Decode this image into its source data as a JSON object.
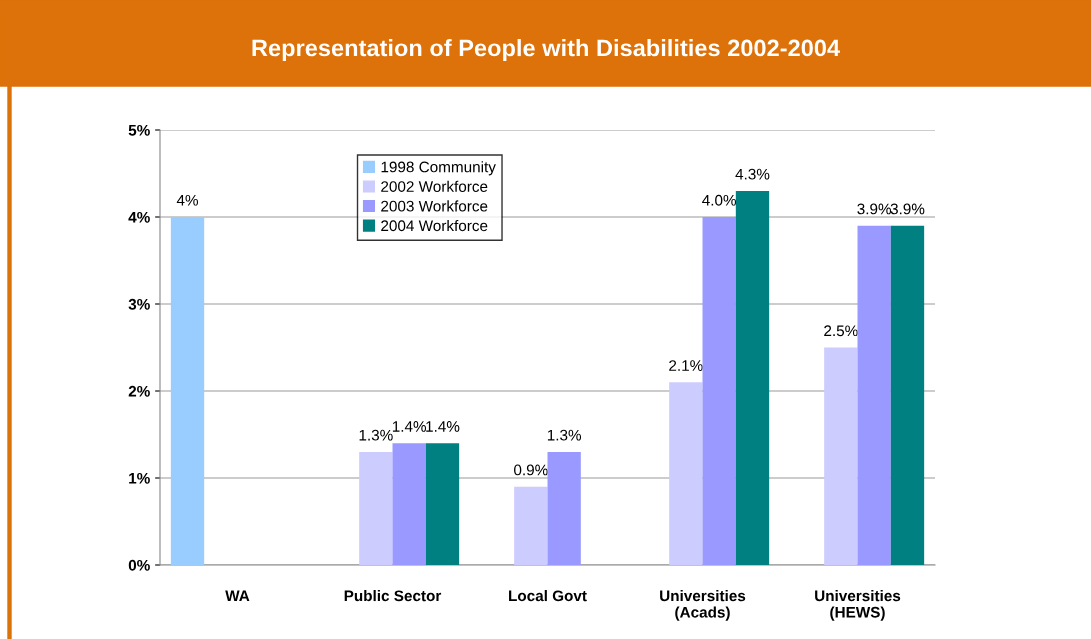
{
  "chart_data": {
    "type": "bar",
    "title": "Representation of People with Disabilities 2002-2004",
    "categories": [
      "WA",
      "Public Sector",
      "Local Govt",
      "Universities\n(Acads)",
      "Universities\n(HEWS)"
    ],
    "series": [
      {
        "name": "1998 Community",
        "color": "#99ccff",
        "values": [
          4,
          null,
          null,
          null,
          null
        ],
        "value_labels": [
          "4%",
          null,
          null,
          null,
          null
        ]
      },
      {
        "name": "2002 Workforce",
        "color": "#ccccff",
        "values": [
          null,
          1.3,
          0.9,
          2.1,
          2.5
        ],
        "value_labels": [
          null,
          "1.3%",
          "0.9%",
          "2.1%",
          "2.5%"
        ]
      },
      {
        "name": "2003 Workforce",
        "color": "#9999ff",
        "values": [
          null,
          1.4,
          1.3,
          4.0,
          3.9
        ],
        "value_labels": [
          null,
          "1.4%",
          "1.3%",
          "4.0%",
          "3.9%"
        ]
      },
      {
        "name": "2004 Workforce",
        "color": "#008080",
        "values": [
          null,
          1.4,
          null,
          4.3,
          3.9
        ],
        "value_labels": [
          null,
          "1.4%",
          null,
          "4.3%",
          "3.9%"
        ]
      }
    ],
    "ylim": [
      0,
      5
    ],
    "yticks": [
      {
        "value": 0,
        "label": "0%"
      },
      {
        "value": 1,
        "label": "1%"
      },
      {
        "value": 2,
        "label": "2%"
      },
      {
        "value": 3,
        "label": "3%"
      },
      {
        "value": 4,
        "label": "4%"
      },
      {
        "value": 5,
        "label": "5%"
      }
    ],
    "grid": "y",
    "legend": "top"
  }
}
